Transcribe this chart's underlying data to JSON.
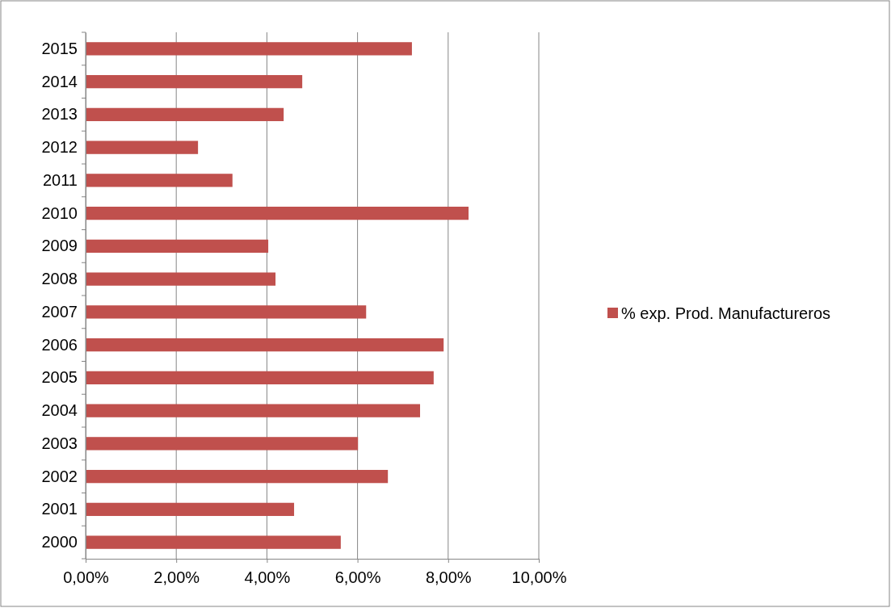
{
  "chart_data": {
    "type": "bar",
    "orientation": "horizontal",
    "categories": [
      "2015",
      "2014",
      "2013",
      "2012",
      "2011",
      "2010",
      "2009",
      "2008",
      "2007",
      "2006",
      "2005",
      "2004",
      "2003",
      "2002",
      "2001",
      "2000"
    ],
    "series": [
      {
        "name": "% exp. Prod. Manufactureros",
        "color": "#c0504d",
        "values": [
          7.2,
          4.78,
          4.37,
          2.48,
          3.24,
          8.45,
          4.03,
          4.19,
          6.19,
          7.9,
          7.68,
          7.38,
          6.01,
          6.67,
          4.6,
          5.63
        ]
      }
    ],
    "xlim": [
      0,
      10
    ],
    "xticks": [
      {
        "value": 0,
        "label": "0,00%"
      },
      {
        "value": 2,
        "label": "2,00%"
      },
      {
        "value": 4,
        "label": "4,00%"
      },
      {
        "value": 6,
        "label": "6,00%"
      },
      {
        "value": 8,
        "label": "8,00%"
      },
      {
        "value": 10,
        "label": "10,00%"
      }
    ],
    "grid": "x",
    "legend": "right"
  }
}
